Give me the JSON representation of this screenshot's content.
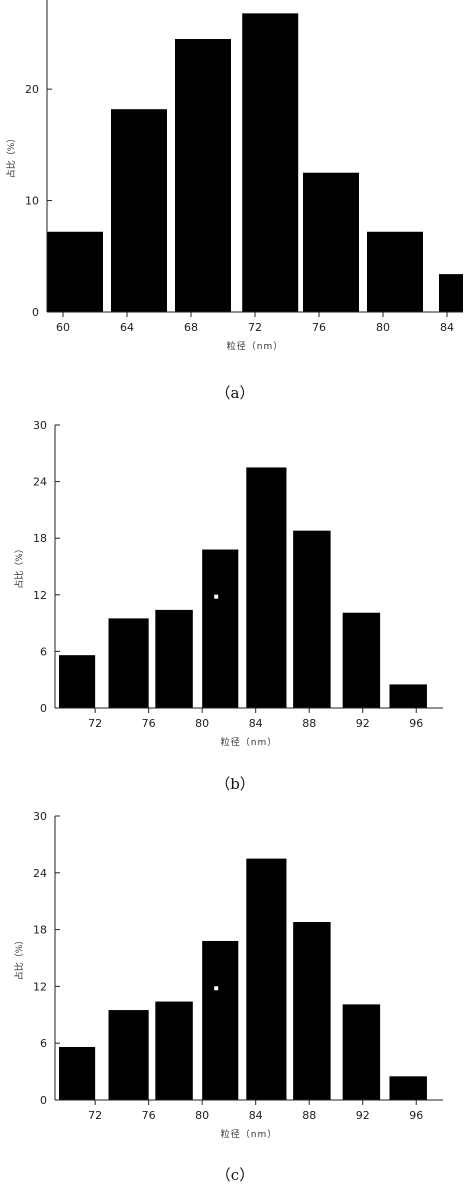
{
  "chart_data": [
    {
      "type": "bar",
      "caption": "（a）",
      "xlabel": "粒径（nm）",
      "ylabel": "占比（%）",
      "xlim": [
        59,
        85
      ],
      "ylim": [
        0,
        28
      ],
      "xticks": [
        "60",
        "64",
        "68",
        "72",
        "76",
        "80",
        "84"
      ],
      "yticks": [
        "0",
        "10",
        "20"
      ],
      "bars": [
        {
          "x0": 59,
          "x1": 62.5,
          "value": 7.2
        },
        {
          "x0": 63,
          "x1": 66.5,
          "value": 18.2
        },
        {
          "x0": 67,
          "x1": 70.5,
          "value": 24.5
        },
        {
          "x0": 71.2,
          "x1": 74.7,
          "value": 26.8
        },
        {
          "x0": 75,
          "x1": 78.5,
          "value": 12.5
        },
        {
          "x0": 79,
          "x1": 82.5,
          "value": 7.2
        },
        {
          "x0": 83.5,
          "x1": 85,
          "value": 3.4
        }
      ]
    },
    {
      "type": "bar",
      "caption": "（b）",
      "xlabel": "粒径（nm）",
      "ylabel": "占比（%）",
      "xlim": [
        69,
        98
      ],
      "ylim": [
        0,
        30
      ],
      "xticks": [
        "72",
        "76",
        "80",
        "84",
        "88",
        "92",
        "96"
      ],
      "yticks": [
        "0",
        "6",
        "12",
        "18",
        "24",
        "30"
      ],
      "bars": [
        {
          "x0": 69.3,
          "x1": 72,
          "value": 5.6
        },
        {
          "x0": 73,
          "x1": 76,
          "value": 9.5
        },
        {
          "x0": 76.5,
          "x1": 79.3,
          "value": 10.4
        },
        {
          "x0": 80,
          "x1": 82.7,
          "value": 16.8
        },
        {
          "x0": 83.3,
          "x1": 86.3,
          "value": 25.5
        },
        {
          "x0": 86.8,
          "x1": 89.6,
          "value": 18.8
        },
        {
          "x0": 90.5,
          "x1": 93.3,
          "value": 10.1
        },
        {
          "x0": 94,
          "x1": 96.8,
          "value": 2.5
        }
      ]
    },
    {
      "type": "bar",
      "caption": "（c）",
      "xlabel": "粒径（nm）",
      "ylabel": "占比（%）",
      "xlim": [
        69,
        98
      ],
      "ylim": [
        0,
        30
      ],
      "xticks": [
        "72",
        "76",
        "80",
        "84",
        "88",
        "92",
        "96"
      ],
      "yticks": [
        "0",
        "6",
        "12",
        "18",
        "24",
        "30"
      ],
      "bars": [
        {
          "x0": 69.3,
          "x1": 72,
          "value": 5.6
        },
        {
          "x0": 73,
          "x1": 76,
          "value": 9.5
        },
        {
          "x0": 76.5,
          "x1": 79.3,
          "value": 10.4
        },
        {
          "x0": 80,
          "x1": 82.7,
          "value": 16.8
        },
        {
          "x0": 83.3,
          "x1": 86.3,
          "value": 25.5
        },
        {
          "x0": 86.8,
          "x1": 89.6,
          "value": 18.8
        },
        {
          "x0": 90.5,
          "x1": 93.3,
          "value": 10.1
        },
        {
          "x0": 94,
          "x1": 96.8,
          "value": 2.5
        }
      ]
    }
  ]
}
